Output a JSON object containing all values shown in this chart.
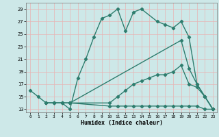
{
  "xlabel": "Humidex (Indice chaleur)",
  "line_color": "#2e7d6e",
  "bg_color": "#cde8e8",
  "grid_minor_color": "#f0b8b8",
  "grid_major_color": "#ffffff",
  "lines": [
    {
      "x": [
        0,
        1,
        2,
        3,
        4,
        5,
        6,
        7,
        8,
        9,
        10,
        11,
        12,
        13,
        14,
        16,
        17,
        18,
        19,
        20,
        21,
        22,
        23
      ],
      "y": [
        16,
        15,
        14,
        14,
        14,
        13,
        18,
        21,
        24.5,
        27.5,
        28,
        29,
        25.5,
        28.5,
        29,
        27,
        26.5,
        26,
        27,
        24.5,
        17,
        15,
        13
      ]
    },
    {
      "x": [
        2,
        3,
        4,
        5,
        19,
        20,
        21,
        22,
        23
      ],
      "y": [
        14,
        14,
        14,
        14,
        24,
        19.5,
        17,
        15,
        13
      ]
    },
    {
      "x": [
        2,
        3,
        4,
        5,
        10,
        11,
        12,
        13,
        14,
        15,
        16,
        17,
        18,
        19,
        20,
        21,
        22,
        23
      ],
      "y": [
        14,
        14,
        14,
        14,
        14,
        15,
        16,
        17,
        17.5,
        18,
        18.5,
        18.5,
        19,
        20,
        17,
        16.5,
        15,
        13
      ]
    },
    {
      "x": [
        2,
        3,
        4,
        5,
        10,
        11,
        12,
        13,
        14,
        15,
        16,
        17,
        18,
        19,
        20,
        21,
        22,
        23
      ],
      "y": [
        14,
        14,
        14,
        14,
        13.5,
        13.5,
        13.5,
        13.5,
        13.5,
        13.5,
        13.5,
        13.5,
        13.5,
        13.5,
        13.5,
        13.5,
        13,
        13
      ]
    }
  ],
  "xlim": [
    -0.5,
    23.5
  ],
  "ylim": [
    12.5,
    30
  ],
  "yticks": [
    13,
    15,
    17,
    19,
    21,
    23,
    25,
    27,
    29
  ],
  "xticks": [
    0,
    1,
    2,
    3,
    4,
    5,
    6,
    7,
    8,
    9,
    10,
    11,
    12,
    13,
    14,
    15,
    16,
    17,
    18,
    19,
    20,
    21,
    22,
    23
  ],
  "marker": "D",
  "markersize": 2.2,
  "linewidth": 1.0
}
